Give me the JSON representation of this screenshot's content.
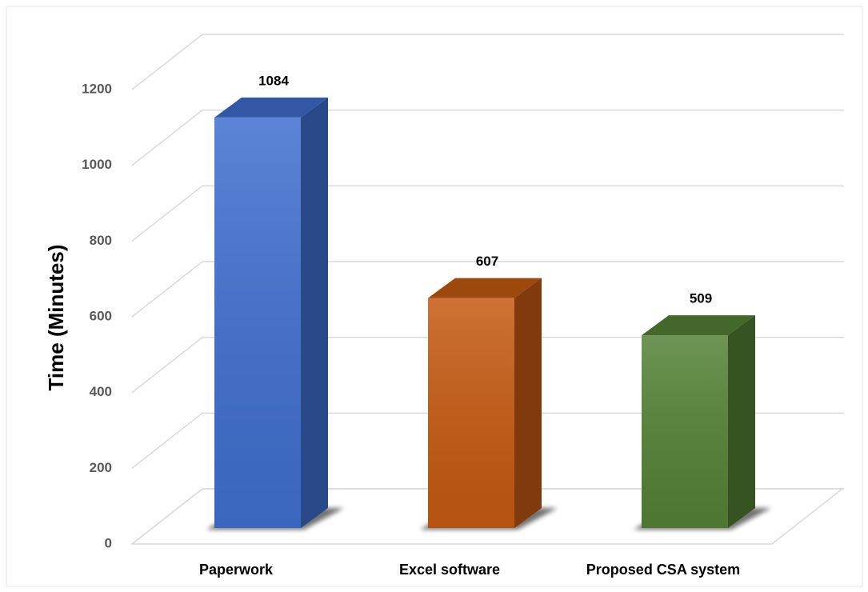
{
  "chart_data": {
    "type": "bar3d",
    "categories": [
      "Paperwork",
      "Excel software",
      "Proposed CSA system"
    ],
    "values": [
      1084,
      607,
      509
    ],
    "colors": [
      "#3f6fcf",
      "#c55a11",
      "#548235"
    ],
    "ylabel": "Time (Minutes)",
    "ylim": [
      0,
      1200
    ],
    "yticks": [
      0,
      200,
      400,
      600,
      800,
      1000,
      1200
    ],
    "grid": true
  }
}
